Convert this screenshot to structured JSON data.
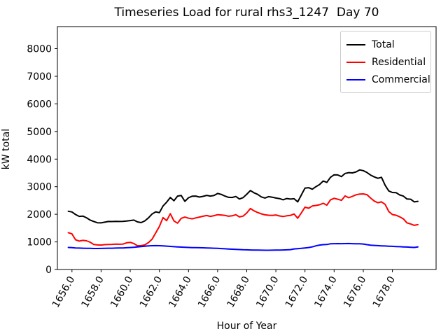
{
  "figure": {
    "background": "#ffffff"
  },
  "chart_data": {
    "type": "line",
    "title": "Timeseries Load for rural rhs3_1247  Day 70",
    "xlabel": "Hour of Year",
    "ylabel": "kW total",
    "grid": false,
    "legend_position": "upper right",
    "xlim": [
      1655,
      1681
    ],
    "ylim": [
      0,
      8800
    ],
    "x_ticks": [
      1656,
      1658,
      1660,
      1662,
      1664,
      1666,
      1668,
      1670,
      1672,
      1674,
      1676,
      1678
    ],
    "x_tick_labels": [
      "1656.0",
      "1658.0",
      "1660.0",
      "1662.0",
      "1664.0",
      "1666.0",
      "1668.0",
      "1670.0",
      "1672.0",
      "1674.0",
      "1676.0",
      "1678.0"
    ],
    "y_ticks": [
      0,
      1000,
      2000,
      3000,
      4000,
      5000,
      6000,
      7000,
      8000
    ],
    "y_tick_labels": [
      "0",
      "1000",
      "2000",
      "3000",
      "4000",
      "5000",
      "6000",
      "7000",
      "8000"
    ],
    "x": [
      1655.75,
      1656,
      1656.25,
      1656.5,
      1656.75,
      1657,
      1657.25,
      1657.5,
      1657.75,
      1658,
      1658.25,
      1658.5,
      1658.75,
      1659,
      1659.25,
      1659.5,
      1659.75,
      1660,
      1660.25,
      1660.5,
      1660.75,
      1661,
      1661.25,
      1661.5,
      1661.75,
      1662,
      1662.25,
      1662.5,
      1662.75,
      1663,
      1663.25,
      1663.5,
      1663.75,
      1664,
      1664.25,
      1664.5,
      1664.75,
      1665,
      1665.25,
      1665.5,
      1665.75,
      1666,
      1666.25,
      1666.5,
      1666.75,
      1667,
      1667.25,
      1667.5,
      1667.75,
      1668,
      1668.25,
      1668.5,
      1668.75,
      1669,
      1669.25,
      1669.5,
      1669.75,
      1670,
      1670.25,
      1670.5,
      1670.75,
      1671,
      1671.25,
      1671.5,
      1671.75,
      1672,
      1672.25,
      1672.5,
      1672.75,
      1673,
      1673.25,
      1673.5,
      1673.75,
      1674,
      1674.25,
      1674.5,
      1674.75,
      1675,
      1675.25,
      1675.5,
      1675.75,
      1676,
      1676.25,
      1676.5,
      1676.75,
      1677,
      1677.25,
      1677.5,
      1677.75,
      1678,
      1678.25,
      1678.5,
      1678.75,
      1679,
      1679.25,
      1679.5,
      1679.75
    ],
    "series": [
      {
        "name": "Total",
        "color": "#000000",
        "values": [
          2110,
          2085,
          1990,
          1925,
          1935,
          1875,
          1790,
          1740,
          1695,
          1690,
          1715,
          1740,
          1738,
          1745,
          1740,
          1745,
          1755,
          1772,
          1790,
          1725,
          1700,
          1760,
          1870,
          2010,
          2090,
          2060,
          2300,
          2440,
          2610,
          2490,
          2660,
          2680,
          2470,
          2600,
          2655,
          2660,
          2625,
          2650,
          2685,
          2660,
          2680,
          2755,
          2720,
          2660,
          2615,
          2610,
          2645,
          2555,
          2605,
          2725,
          2860,
          2780,
          2720,
          2630,
          2590,
          2640,
          2620,
          2590,
          2570,
          2525,
          2572,
          2550,
          2565,
          2450,
          2700,
          2950,
          2965,
          2910,
          3000,
          3080,
          3205,
          3155,
          3340,
          3430,
          3425,
          3365,
          3480,
          3510,
          3500,
          3535,
          3610,
          3580,
          3515,
          3420,
          3355,
          3305,
          3340,
          3050,
          2845,
          2790,
          2785,
          2700,
          2660,
          2555,
          2545,
          2450,
          2470
        ]
      },
      {
        "name": "Residential",
        "color": "#ff0000",
        "values": [
          1335,
          1290,
          1075,
          1030,
          1055,
          1040,
          990,
          905,
          890,
          885,
          900,
          905,
          910,
          920,
          915,
          920,
          965,
          985,
          940,
          860,
          865,
          890,
          975,
          1100,
          1330,
          1560,
          1880,
          1770,
          2020,
          1760,
          1680,
          1855,
          1900,
          1860,
          1835,
          1870,
          1900,
          1930,
          1955,
          1925,
          1950,
          1985,
          1975,
          1960,
          1930,
          1945,
          1985,
          1905,
          1935,
          2050,
          2210,
          2125,
          2065,
          2015,
          1980,
          1965,
          1960,
          1975,
          1940,
          1920,
          1945,
          1960,
          2010,
          1860,
          2050,
          2260,
          2220,
          2300,
          2320,
          2345,
          2400,
          2330,
          2520,
          2580,
          2545,
          2505,
          2665,
          2600,
          2650,
          2705,
          2735,
          2740,
          2710,
          2590,
          2480,
          2420,
          2450,
          2360,
          2100,
          1990,
          1965,
          1910,
          1835,
          1690,
          1650,
          1600,
          1625
        ]
      },
      {
        "name": "Commercial",
        "color": "#0000ff",
        "values": [
          800,
          790,
          782,
          776,
          771,
          768,
          765,
          762,
          760,
          764,
          767,
          770,
          772,
          775,
          778,
          782,
          788,
          796,
          806,
          818,
          831,
          845,
          856,
          862,
          866,
          862,
          856,
          846,
          838,
          828,
          820,
          812,
          806,
          800,
          795,
          791,
          788,
          785,
          781,
          777,
          772,
          766,
          758,
          750,
          742,
          735,
          728,
          722,
          716,
          712,
          708,
          705,
          702,
          700,
          698,
          698,
          700,
          702,
          705,
          708,
          713,
          720,
          745,
          755,
          765,
          780,
          797,
          820,
          856,
          886,
          900,
          906,
          930,
          936,
          938,
          936,
          938,
          940,
          936,
          934,
          930,
          924,
          900,
          882,
          872,
          865,
          858,
          851,
          845,
          840,
          833,
          826,
          820,
          813,
          806,
          800,
          820
        ]
      }
    ]
  }
}
